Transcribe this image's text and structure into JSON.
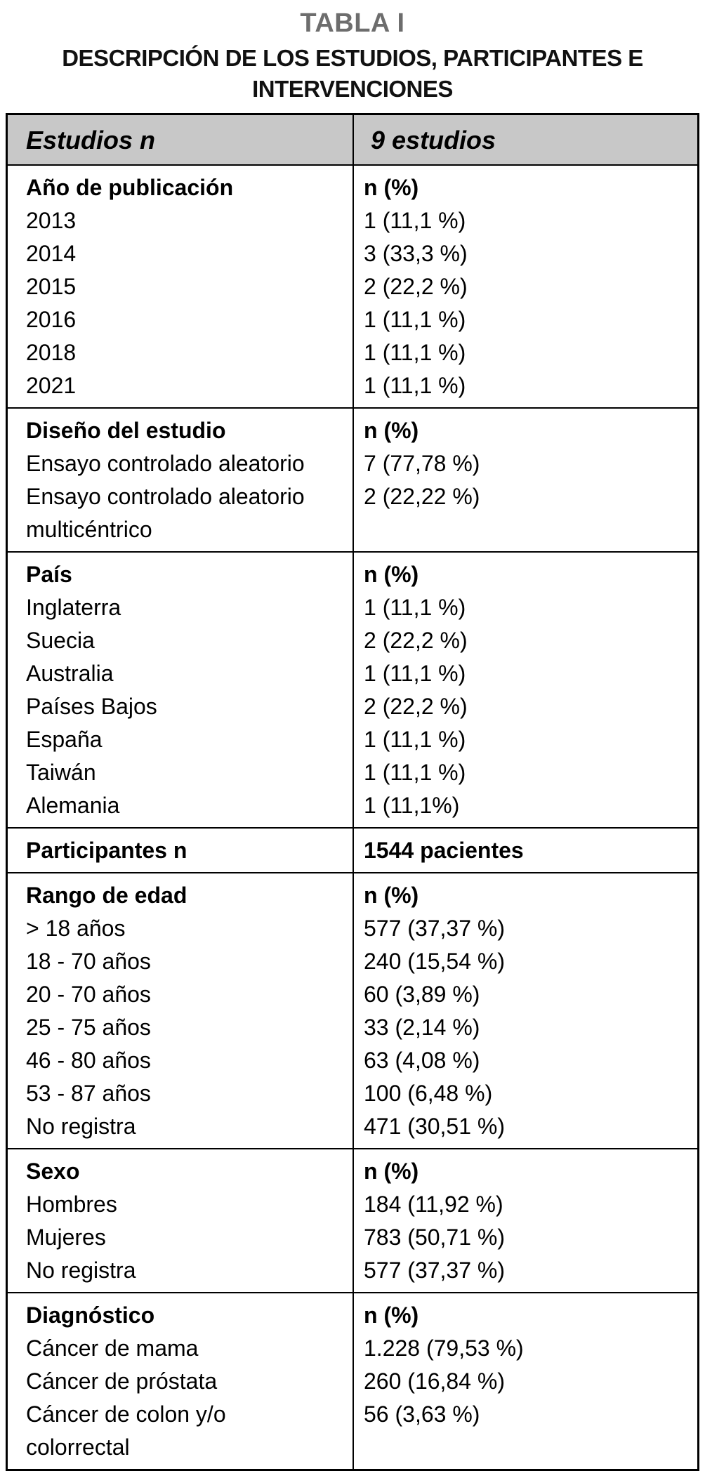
{
  "title": "TABLA I",
  "subtitle": "DESCRIPCIÓN DE LOS ESTUDIOS, PARTICIPANTES E INTERVENCIONES",
  "colors": {
    "title_gray": "#6d6d6d",
    "header_background": "#c8c8c8",
    "border": "#000000"
  },
  "table": {
    "header": {
      "col1": "Estudios n",
      "col2": "9 estudios"
    },
    "sections": [
      {
        "left": [
          "Año de publicación",
          "2013",
          "2014",
          "2015",
          "2016",
          "2018",
          "2021"
        ],
        "right": [
          "n (%)",
          "1 (11,1 %)",
          "3 (33,3 %)",
          "2 (22,2 %)",
          "1 (11,1 %)",
          "1 (11,1 %)",
          "1 (11,1 %)"
        ]
      },
      {
        "left": [
          "Diseño del estudio",
          "Ensayo controlado aleatorio",
          "Ensayo controlado aleatorio multicéntrico"
        ],
        "right": [
          "n (%)",
          "7 (77,78 %)",
          "2 (22,22 %)"
        ]
      },
      {
        "left": [
          "País",
          "Inglaterra",
          "Suecia",
          "Australia",
          "Países Bajos",
          "España",
          "Taiwán",
          "Alemania"
        ],
        "right": [
          "n (%)",
          "1 (11,1 %)",
          "2 (22,2 %)",
          "1 (11,1 %)",
          "2 (22,2 %)",
          "1 (11,1 %)",
          "1 (11,1 %)",
          "1 (11,1%)"
        ]
      },
      {
        "left": [
          "Participantes n"
        ],
        "right": [
          "1544 pacientes"
        ]
      },
      {
        "left": [
          "Rango de edad",
          "> 18 años",
          "18 - 70 años",
          "20 - 70 años",
          "25 - 75 años",
          "46 - 80 años",
          "53 - 87 años",
          "No registra"
        ],
        "right": [
          "n (%)",
          "577 (37,37 %)",
          "240 (15,54 %)",
          "60 (3,89 %)",
          "33 (2,14 %)",
          "63 (4,08 %)",
          "100 (6,48 %)",
          "471 (30,51 %)"
        ]
      },
      {
        "left": [
          "Sexo",
          "Hombres",
          "Mujeres",
          "No registra"
        ],
        "right": [
          "n (%)",
          "184 (11,92 %)",
          "783 (50,71 %)",
          "577 (37,37 %)"
        ]
      },
      {
        "left": [
          "Diagnóstico",
          "Cáncer de mama",
          "Cáncer de próstata",
          "Cáncer de colon y/o colorrectal"
        ],
        "right": [
          "n (%)",
          "1.228 (79,53 %)",
          "260 (16,84 %)",
          "56 (3,63 %)"
        ]
      }
    ]
  }
}
